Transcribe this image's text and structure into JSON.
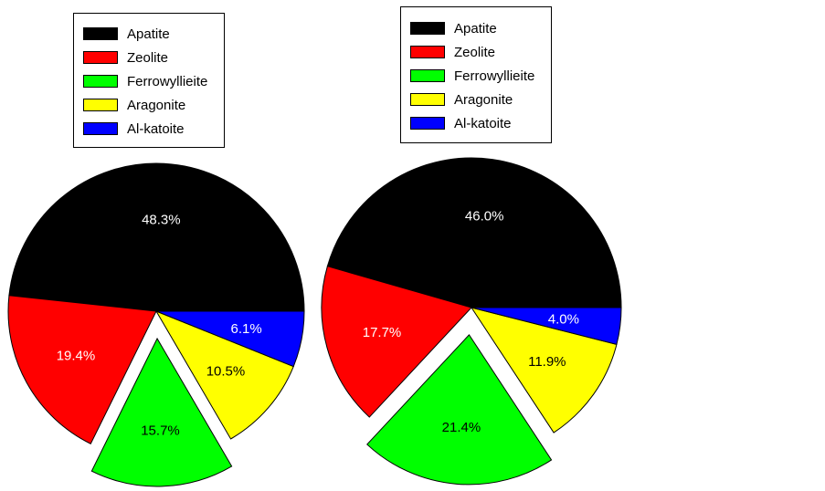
{
  "colors": {
    "Apatite": "#000000",
    "Zeolite": "#ff0000",
    "Ferrowyllieite": "#00ff00",
    "Aragonite": "#ffff00",
    "Al-katoite": "#0000ff"
  },
  "chart_data": [
    {
      "type": "pie",
      "legend_position": "top",
      "exploded": "Ferrowyllieite",
      "categories": [
        "Apatite",
        "Zeolite",
        "Ferrowyllieite",
        "Aragonite",
        "Al-katoite"
      ],
      "values": [
        48.3,
        19.4,
        15.7,
        10.5,
        6.1
      ],
      "labels": [
        "48.3%",
        "19.4%",
        "15.7%",
        "10.5%",
        "6.1%"
      ]
    },
    {
      "type": "pie",
      "legend_position": "top",
      "exploded": "Ferrowyllieite",
      "categories": [
        "Apatite",
        "Zeolite",
        "Ferrowyllieite",
        "Aragonite",
        "Al-katoite"
      ],
      "values": [
        46.0,
        17.7,
        21.4,
        11.9,
        4.0
      ],
      "labels": [
        "46.0%",
        "17.7%",
        "21.4%",
        "11.9%",
        "4.0%"
      ]
    }
  ]
}
